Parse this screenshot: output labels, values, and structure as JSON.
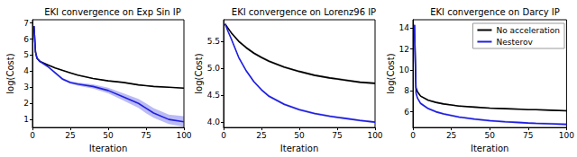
{
  "chart_data": [
    {
      "type": "line",
      "title": "EKI convergence on Exp Sin IP",
      "x_label": "Iteration",
      "y_label": "log(Cost)",
      "x": [
        1,
        2,
        3,
        5,
        10,
        15,
        20,
        25,
        30,
        40,
        50,
        60,
        70,
        75,
        80,
        90,
        100
      ],
      "series": [
        {
          "name": "No acceleration",
          "color": "#000000",
          "values": [
            6.8,
            5.2,
            4.8,
            4.6,
            4.4,
            4.2,
            4.05,
            3.9,
            3.75,
            3.55,
            3.4,
            3.3,
            3.15,
            3.1,
            3.05,
            3.0,
            2.95
          ],
          "lower": [
            6.78,
            5.17,
            4.77,
            4.57,
            4.37,
            4.17,
            4.02,
            3.87,
            3.72,
            3.52,
            3.37,
            3.27,
            3.12,
            3.07,
            3.02,
            2.97,
            2.92
          ],
          "upper": [
            6.82,
            5.23,
            4.83,
            4.63,
            4.43,
            4.23,
            4.08,
            3.93,
            3.78,
            3.58,
            3.43,
            3.33,
            3.18,
            3.13,
            3.08,
            3.03,
            2.98
          ]
        },
        {
          "name": "Nesterov",
          "color": "#1f1fe0",
          "values": [
            6.8,
            5.2,
            4.8,
            4.6,
            4.3,
            3.9,
            3.5,
            3.3,
            3.2,
            3.05,
            2.8,
            2.4,
            2.0,
            1.7,
            1.4,
            1.0,
            0.85
          ],
          "lower": [
            6.77,
            5.17,
            4.76,
            4.55,
            4.24,
            3.83,
            3.43,
            3.22,
            3.1,
            2.92,
            2.62,
            2.18,
            1.72,
            1.38,
            1.1,
            0.72,
            0.55
          ],
          "upper": [
            6.83,
            5.23,
            4.84,
            4.65,
            4.36,
            3.97,
            3.57,
            3.38,
            3.3,
            3.18,
            2.98,
            2.62,
            2.28,
            2.0,
            1.7,
            1.3,
            1.2
          ]
        }
      ],
      "xlim": [
        0,
        100
      ],
      "ylim": [
        0.5,
        7.2
      ],
      "xticks": [
        0,
        25,
        50,
        75,
        100
      ],
      "yticks": [
        1,
        2,
        3,
        4,
        5,
        6,
        7
      ],
      "grid": false
    },
    {
      "type": "line",
      "title": "EKI convergence on Lorenz96 IP",
      "x_label": "Iteration",
      "y_label": "log(Cost)",
      "x": [
        1,
        2,
        3,
        5,
        10,
        15,
        20,
        25,
        30,
        40,
        50,
        60,
        70,
        75,
        80,
        90,
        100
      ],
      "series": [
        {
          "name": "No acceleration",
          "color": "#000000",
          "values": [
            5.82,
            5.78,
            5.74,
            5.66,
            5.5,
            5.38,
            5.28,
            5.2,
            5.13,
            5.02,
            4.94,
            4.87,
            4.82,
            4.8,
            4.78,
            4.74,
            4.72
          ],
          "lower": [
            5.8,
            5.76,
            5.72,
            5.64,
            5.48,
            5.36,
            5.26,
            5.18,
            5.11,
            5.0,
            4.92,
            4.85,
            4.8,
            4.78,
            4.76,
            4.72,
            4.7
          ],
          "upper": [
            5.84,
            5.8,
            5.76,
            5.68,
            5.52,
            5.4,
            5.3,
            5.22,
            5.15,
            5.04,
            4.96,
            4.89,
            4.84,
            4.82,
            4.8,
            4.76,
            4.74
          ]
        },
        {
          "name": "Nesterov",
          "color": "#1f1fe0",
          "values": [
            5.82,
            5.75,
            5.68,
            5.55,
            5.2,
            4.95,
            4.75,
            4.6,
            4.48,
            4.33,
            4.23,
            4.16,
            4.11,
            4.09,
            4.07,
            4.03,
            4.0
          ],
          "lower": [
            5.8,
            5.73,
            5.66,
            5.53,
            5.18,
            4.93,
            4.73,
            4.58,
            4.46,
            4.31,
            4.21,
            4.14,
            4.09,
            4.07,
            4.05,
            4.01,
            3.98
          ],
          "upper": [
            5.84,
            5.77,
            5.7,
            5.57,
            5.22,
            4.97,
            4.77,
            4.62,
            4.5,
            4.35,
            4.25,
            4.18,
            4.13,
            4.11,
            4.09,
            4.05,
            4.02
          ]
        }
      ],
      "xlim": [
        0,
        100
      ],
      "ylim": [
        3.9,
        5.9
      ],
      "xticks": [
        0,
        25,
        50,
        75,
        100
      ],
      "yticks": [
        {
          "value": 4,
          "label": "4.0"
        },
        4.5,
        {
          "value": 5,
          "label": "5.0"
        },
        5.5
      ],
      "grid": false
    },
    {
      "type": "line",
      "title": "EKI convergence on Darcy IP",
      "x_label": "Iteration",
      "y_label": "log(Cost)",
      "x": [
        1,
        2,
        3,
        5,
        10,
        15,
        20,
        25,
        30,
        40,
        50,
        60,
        70,
        75,
        80,
        90,
        100
      ],
      "series": [
        {
          "name": "No acceleration",
          "color": "#000000",
          "values": [
            14.3,
            8.3,
            7.9,
            7.5,
            7.1,
            6.9,
            6.75,
            6.65,
            6.55,
            6.45,
            6.35,
            6.3,
            6.25,
            6.2,
            6.2,
            6.15,
            6.1
          ],
          "lower": [
            14.2,
            8.22,
            7.82,
            7.42,
            7.03,
            6.83,
            6.68,
            6.58,
            6.48,
            6.38,
            6.28,
            6.23,
            6.18,
            6.13,
            6.13,
            6.08,
            6.03
          ],
          "upper": [
            14.4,
            8.38,
            7.98,
            7.58,
            7.17,
            6.97,
            6.82,
            6.72,
            6.62,
            6.52,
            6.42,
            6.37,
            6.32,
            6.27,
            6.27,
            6.22,
            6.17
          ]
        },
        {
          "name": "Nesterov",
          "color": "#1f1fe0",
          "values": [
            14.3,
            7.8,
            7.3,
            6.8,
            6.3,
            6.0,
            5.8,
            5.65,
            5.5,
            5.3,
            5.15,
            5.05,
            4.97,
            4.93,
            4.9,
            4.85,
            4.8
          ],
          "lower": [
            14.2,
            7.7,
            7.2,
            6.7,
            6.2,
            5.9,
            5.7,
            5.55,
            5.4,
            5.2,
            5.05,
            4.95,
            4.87,
            4.83,
            4.8,
            4.75,
            4.7
          ],
          "upper": [
            14.4,
            7.9,
            7.4,
            6.9,
            6.4,
            6.1,
            5.9,
            5.75,
            5.6,
            5.4,
            5.25,
            5.15,
            5.07,
            5.03,
            5.0,
            4.95,
            4.9
          ]
        }
      ],
      "xlim": [
        0,
        100
      ],
      "ylim": [
        4.5,
        14.8
      ],
      "xticks": [
        0,
        25,
        50,
        75,
        100
      ],
      "yticks": [
        6,
        8,
        10,
        12,
        14
      ],
      "grid": false,
      "legend": "upper right"
    }
  ]
}
